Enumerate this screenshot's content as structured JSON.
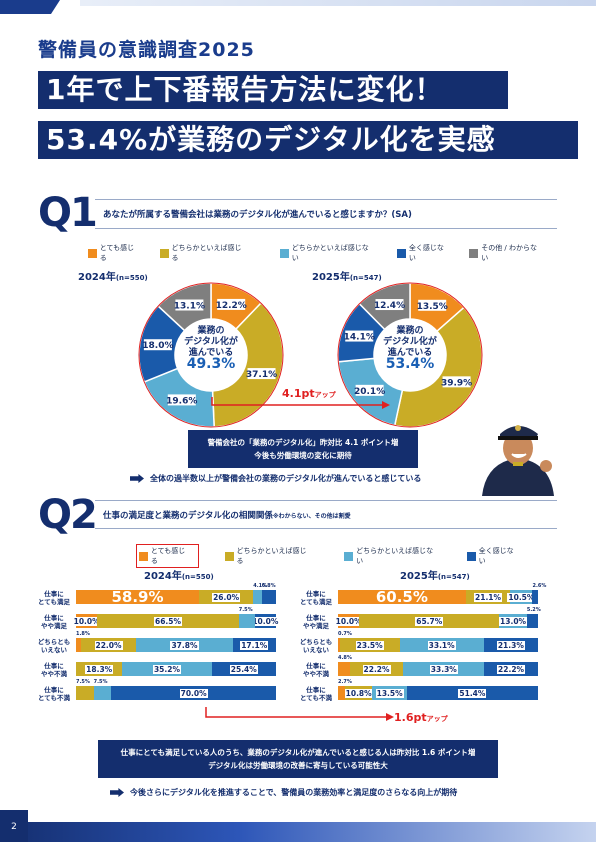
{
  "header": {
    "subtitle": "警備員の意識調査2025",
    "headline1": "1年で上下番報告方法に変化！",
    "headline2_pct": "53.4%",
    "headline2_rest": "が業務のデジタル化を実感"
  },
  "q1": {
    "mark": "Q1",
    "question": "あなたが所属する警備会社は業務のデジタル化が進んでいると感じますか？(SA)",
    "legend": [
      "とても感じる",
      "どちらかといえば感じる",
      "どちらかといえば感じない",
      "全く感じない",
      "その他 / わからない"
    ],
    "colors": [
      "#f08c1e",
      "#c9ac26",
      "#5aaed2",
      "#1a5aaa",
      "#7f7f7f"
    ],
    "year2024": "2024年",
    "n2024": "(n=550)",
    "year2025": "2025年",
    "n2025": "(n=547)",
    "center_line1": "業務の",
    "center_line2": "デジタル化が",
    "center_line3": "進んでいる",
    "center2024": "49.3%",
    "center2025": "53.4%",
    "diff": "4.1pt",
    "diff_unit": "アップ",
    "info_line1": "警備会社の「業務のデジタル化」昨対比 4.1 ポイント増",
    "info_line2": "今後も労働環境の変化に期待",
    "conclusion": "全体の過半数以上が警備会社の業務のデジタル化が進んでいると感じている"
  },
  "chart_data": [
    {
      "type": "pie",
      "title": "2024年(n=550)",
      "categories": [
        "とても感じる",
        "どちらかといえば感じる",
        "どちらかといえば感じない",
        "全く感じない",
        "その他 / わからない"
      ],
      "values": [
        12.2,
        37.1,
        19.6,
        18.0,
        13.1
      ]
    },
    {
      "type": "pie",
      "title": "2025年(n=547)",
      "categories": [
        "とても感じる",
        "どちらかといえば感じる",
        "どちらかといえば感じない",
        "全く感じない",
        "その他 / わからない"
      ],
      "values": [
        13.5,
        39.9,
        20.1,
        14.1,
        12.4
      ]
    }
  ],
  "q2": {
    "mark": "Q2",
    "question": "仕事の満足度と業務のデジタル化の相関関係",
    "question_note": "※わからない、その他は割愛",
    "legend": [
      "とても感じる",
      "どちらかといえば感じる",
      "どちらかといえば感じない",
      "全く感じない"
    ],
    "colors": [
      "#f08c1e",
      "#c9ac26",
      "#5aaed2",
      "#1a5aaa"
    ],
    "year2024": "2024年",
    "n2024": "(n=550)",
    "year2025": "2025年",
    "n2025": "(n=547)",
    "rows": [
      {
        "l1": "仕事に",
        "l2": "とても満足"
      },
      {
        "l1": "仕事に",
        "l2": "やや満足"
      },
      {
        "l1": "どちらとも",
        "l2": "いえない"
      },
      {
        "l1": "仕事に",
        "l2": "やや不満"
      },
      {
        "l1": "仕事に",
        "l2": "とても不満"
      }
    ],
    "bars2024": [
      [
        "58.9%",
        "26.0%",
        "4.1%",
        "6.8%"
      ],
      [
        "10.0%",
        "66.5%",
        "7.5%",
        "10.0%"
      ],
      [
        "1.8%",
        "22.0%",
        "37.8%",
        "17.1%"
      ],
      [
        "",
        "18.3%",
        "35.2%",
        "25.4%"
      ],
      [
        "",
        "7.5%",
        "7.5%",
        "70.0%"
      ]
    ],
    "vals2024": [
      [
        58.9,
        26.0,
        4.1,
        6.8
      ],
      [
        10.0,
        66.5,
        7.5,
        10.0
      ],
      [
        1.8,
        22.0,
        37.8,
        17.1
      ],
      [
        0,
        18.3,
        35.2,
        25.4
      ],
      [
        0,
        7.5,
        7.5,
        70.0
      ]
    ],
    "bars2025": [
      [
        "60.5%",
        "21.1%",
        "10.5%",
        "2.6%"
      ],
      [
        "10.0%",
        "65.7%",
        "13.0%",
        "5.2%"
      ],
      [
        "0.7%",
        "23.5%",
        "33.1%",
        "21.3%"
      ],
      [
        "4.8%",
        "22.2%",
        "33.3%",
        "22.2%"
      ],
      [
        "2.7%",
        "10.8%",
        "13.5%",
        "51.4%"
      ]
    ],
    "vals2025": [
      [
        60.5,
        21.1,
        10.5,
        2.6
      ],
      [
        10.0,
        65.7,
        13.0,
        5.2
      ],
      [
        0.7,
        23.5,
        33.1,
        21.3
      ],
      [
        4.8,
        22.2,
        33.3,
        22.2
      ],
      [
        2.7,
        10.8,
        13.5,
        51.4
      ]
    ],
    "diff": "1.6pt",
    "diff_unit": "アップ",
    "info_line1": "仕事にとても満足している人のうち、業務のデジタル化が進んでいると感じる人は昨対比 1.6 ポイント増",
    "info_line2": "デジタル化は労働環境の改善に寄与している可能性大",
    "conclusion": "今後さらにデジタル化を推進することで、警備員の業務効率と満足度のさらなる向上が期待"
  },
  "page_number": "2"
}
